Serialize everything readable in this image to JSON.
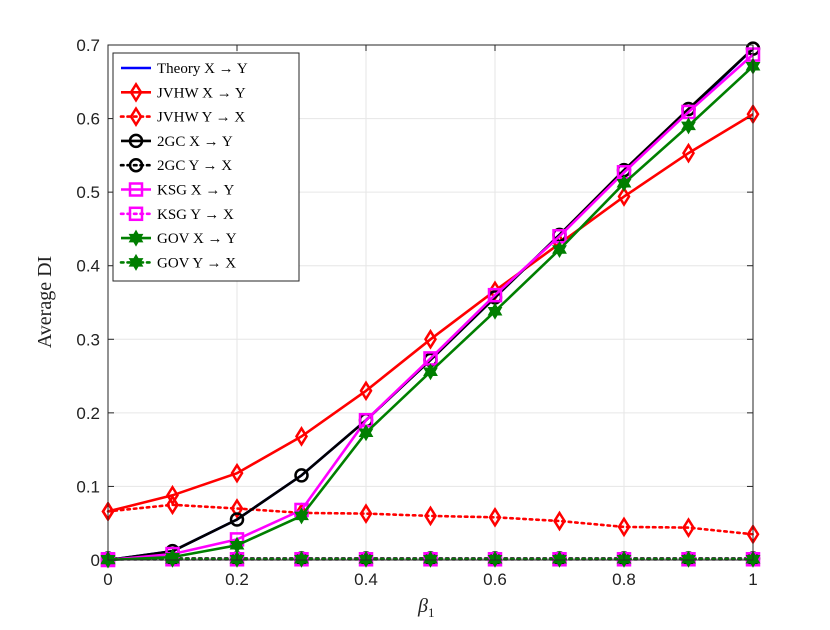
{
  "chart_data": {
    "type": "line",
    "xlabel": "β",
    "xlabel_sub": "1",
    "ylabel": "Average DI",
    "xlim": [
      0,
      1
    ],
    "ylim": [
      0,
      0.7
    ],
    "grid": true,
    "legend_position": "top-left",
    "x_ticks": [
      "0",
      "0.2",
      "0.4",
      "0.6",
      "0.8",
      "1"
    ],
    "y_ticks": [
      "0",
      "0.1",
      "0.2",
      "0.3",
      "0.4",
      "0.5",
      "0.6",
      "0.7"
    ],
    "x": [
      0,
      0.1,
      0.2,
      0.3,
      0.4,
      0.5,
      0.6,
      0.7,
      0.8,
      0.9,
      1.0
    ],
    "series": [
      {
        "name": "Theory X → Y",
        "color": "#0000ff",
        "style": "solid",
        "marker": "none",
        "values": [
          0,
          0.012,
          0.055,
          0.115,
          0.19,
          0.272,
          0.357,
          0.442,
          0.527,
          0.611,
          0.695
        ]
      },
      {
        "name": "JVHW X → Y",
        "color": "#ff0000",
        "style": "solid",
        "marker": "diamond",
        "values": [
          0.066,
          0.088,
          0.118,
          0.168,
          0.23,
          0.3,
          0.366,
          0.43,
          0.494,
          0.553,
          0.606
        ]
      },
      {
        "name": "JVHW Y → X",
        "color": "#ff0000",
        "style": "dotted",
        "marker": "diamond",
        "values": [
          0.066,
          0.075,
          0.07,
          0.064,
          0.063,
          0.06,
          0.058,
          0.053,
          0.045,
          0.044,
          0.035
        ]
      },
      {
        "name": "2GC X → Y",
        "color": "#000000",
        "style": "solid",
        "marker": "circle",
        "values": [
          0,
          0.012,
          0.055,
          0.115,
          0.19,
          0.272,
          0.357,
          0.442,
          0.53,
          0.613,
          0.695
        ]
      },
      {
        "name": "2GC Y → X",
        "color": "#000000",
        "style": "dotted",
        "marker": "circle",
        "values": [
          0.002,
          0.002,
          0.002,
          0.002,
          0.002,
          0.002,
          0.002,
          0.002,
          0.002,
          0.002,
          0.002
        ]
      },
      {
        "name": "KSG X → Y",
        "color": "#ff00ff",
        "style": "solid",
        "marker": "square",
        "values": [
          0,
          0.008,
          0.028,
          0.068,
          0.19,
          0.274,
          0.36,
          0.44,
          0.527,
          0.609,
          0.687
        ]
      },
      {
        "name": "KSG Y → X",
        "color": "#ff00ff",
        "style": "dotted",
        "marker": "square",
        "values": [
          0.001,
          0.001,
          0.001,
          0.001,
          0.001,
          0.001,
          0.001,
          0.001,
          0.001,
          0.001,
          0.001
        ]
      },
      {
        "name": "GOV X → Y",
        "color": "#007f00",
        "style": "solid",
        "marker": "hexagram",
        "values": [
          0,
          0.004,
          0.02,
          0.06,
          0.173,
          0.256,
          0.338,
          0.422,
          0.512,
          0.59,
          0.671
        ]
      },
      {
        "name": "GOV Y → X",
        "color": "#007f00",
        "style": "dotted",
        "marker": "hexagram",
        "values": [
          0.001,
          0.001,
          0.001,
          0.001,
          0.001,
          0.001,
          0.001,
          0.001,
          0.001,
          0.001,
          0.001
        ]
      }
    ]
  }
}
